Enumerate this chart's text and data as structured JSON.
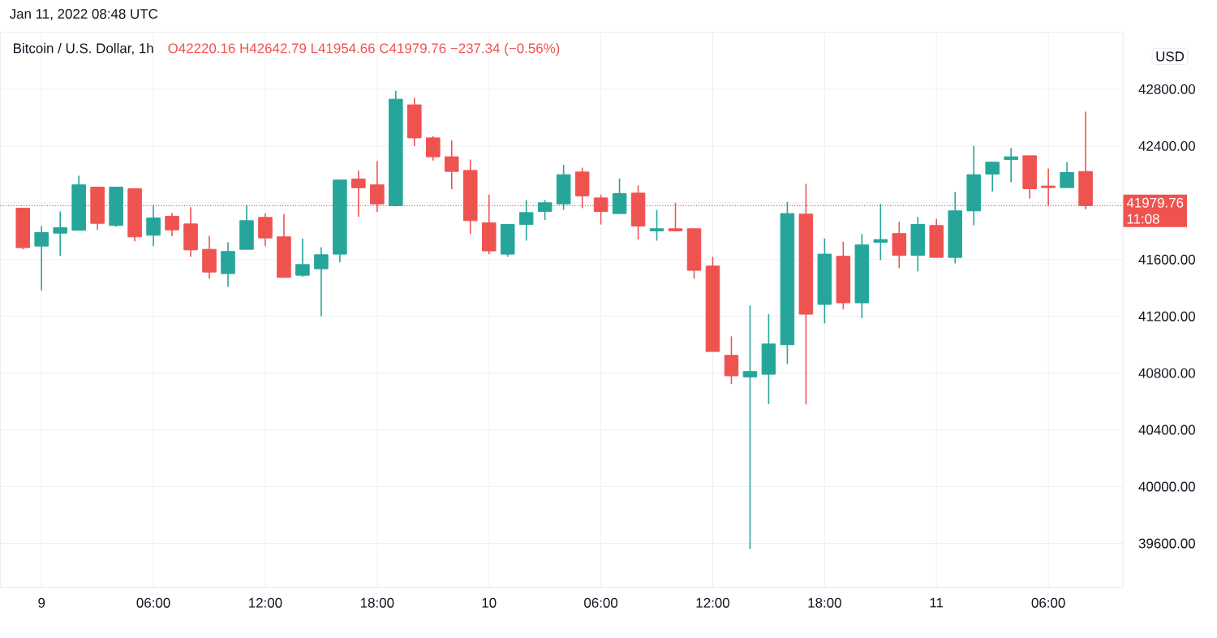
{
  "chart_data": {
    "type": "candlestick",
    "title": "Bitcoin / U.S. Dollar, 1h",
    "subtitle": "O42220.16 H42642.79 L41954.66 C41979.76 −237.34 (−0.56%)",
    "ylabel": "USD",
    "annotations": [
      "Jan 11, 2022 08:48 UTC",
      "11:08"
    ],
    "x": [
      "2022-01-08T23:00",
      "2022-01-09T00:00",
      "2022-01-09T01:00",
      "2022-01-09T02:00",
      "2022-01-09T03:00",
      "2022-01-09T04:00",
      "2022-01-09T05:00",
      "2022-01-09T06:00",
      "2022-01-09T07:00",
      "2022-01-09T08:00",
      "2022-01-09T09:00",
      "2022-01-09T10:00",
      "2022-01-09T11:00",
      "2022-01-09T12:00",
      "2022-01-09T13:00",
      "2022-01-09T14:00",
      "2022-01-09T15:00",
      "2022-01-09T16:00",
      "2022-01-09T17:00",
      "2022-01-09T18:00",
      "2022-01-09T19:00",
      "2022-01-09T20:00",
      "2022-01-09T21:00",
      "2022-01-09T22:00",
      "2022-01-09T23:00",
      "2022-01-10T00:00",
      "2022-01-10T01:00",
      "2022-01-10T02:00",
      "2022-01-10T03:00",
      "2022-01-10T04:00",
      "2022-01-10T05:00",
      "2022-01-10T06:00",
      "2022-01-10T07:00",
      "2022-01-10T08:00",
      "2022-01-10T09:00",
      "2022-01-10T10:00",
      "2022-01-10T11:00",
      "2022-01-10T12:00",
      "2022-01-10T13:00",
      "2022-01-10T14:00",
      "2022-01-10T15:00",
      "2022-01-10T16:00",
      "2022-01-10T17:00",
      "2022-01-10T18:00",
      "2022-01-10T19:00",
      "2022-01-10T20:00",
      "2022-01-10T21:00",
      "2022-01-10T22:00",
      "2022-01-10T23:00",
      "2022-01-11T00:00",
      "2022-01-11T01:00",
      "2022-01-11T02:00",
      "2022-01-11T03:00",
      "2022-01-11T04:00",
      "2022-01-11T05:00",
      "2022-01-11T06:00",
      "2022-01-11T07:00",
      "2022-01-11T08:00"
    ],
    "ohlc": [
      [
        41962,
        41962,
        41672,
        41684
      ],
      [
        41695,
        41836,
        41383,
        41790
      ],
      [
        41786,
        41939,
        41626,
        41825
      ],
      [
        41806,
        42190,
        41806,
        42126
      ],
      [
        42110,
        42110,
        41809,
        41855
      ],
      [
        41840,
        42110,
        41832,
        42110
      ],
      [
        42099,
        42099,
        41729,
        41760
      ],
      [
        41771,
        41985,
        41695,
        41893
      ],
      [
        41905,
        41927,
        41764,
        41809
      ],
      [
        41851,
        41969,
        41619,
        41668
      ],
      [
        41672,
        41767,
        41466,
        41512
      ],
      [
        41501,
        41722,
        41409,
        41657
      ],
      [
        41672,
        41985,
        41672,
        41874
      ],
      [
        41897,
        41924,
        41695,
        41752
      ],
      [
        41760,
        41920,
        41474,
        41474
      ],
      [
        41489,
        41748,
        41478,
        41565
      ],
      [
        41535,
        41687,
        41200,
        41634
      ],
      [
        41638,
        42160,
        41581,
        42160
      ],
      [
        42167,
        42228,
        41901,
        42106
      ],
      [
        42126,
        42293,
        41935,
        41992
      ],
      [
        41980,
        42790,
        41975,
        42730
      ],
      [
        42690,
        42740,
        42400,
        42457
      ],
      [
        42457,
        42470,
        42297,
        42324
      ],
      [
        42324,
        42440,
        42095,
        42221
      ],
      [
        42228,
        42305,
        41779,
        41874
      ],
      [
        41859,
        42057,
        41638,
        41661
      ],
      [
        41638,
        41847,
        41619,
        41847
      ],
      [
        41847,
        42019,
        41733,
        41931
      ],
      [
        41939,
        42019,
        41878,
        42000
      ],
      [
        41992,
        42267,
        41950,
        42198
      ],
      [
        42217,
        42247,
        41962,
        42049
      ],
      [
        42034,
        42057,
        41847,
        41939
      ],
      [
        41924,
        42171,
        41924,
        42065
      ],
      [
        42068,
        42122,
        41741,
        41836
      ],
      [
        41802,
        41950,
        41733,
        41817
      ],
      [
        41817,
        42000,
        41802,
        41802
      ],
      [
        41817,
        41817,
        41466,
        41524
      ],
      [
        41554,
        41619,
        40952,
        40952
      ],
      [
        40925,
        41059,
        40723,
        40781
      ],
      [
        40773,
        41276,
        39561,
        40811
      ],
      [
        40792,
        41215,
        40582,
        41005
      ],
      [
        41000,
        42007,
        40864,
        41924
      ],
      [
        41920,
        42133,
        40579,
        41215
      ],
      [
        41284,
        41748,
        41150,
        41638
      ],
      [
        41623,
        41726,
        41249,
        41295
      ],
      [
        41295,
        41779,
        41188,
        41703
      ],
      [
        41722,
        41992,
        41596,
        41741
      ],
      [
        41783,
        41867,
        41539,
        41630
      ],
      [
        41630,
        41901,
        41516,
        41847
      ],
      [
        41840,
        41886,
        41615,
        41615
      ],
      [
        41615,
        42076,
        41573,
        41943
      ],
      [
        41943,
        42400,
        41840,
        42198
      ],
      [
        42202,
        42286,
        42080,
        42286
      ],
      [
        42305,
        42385,
        42145,
        42324
      ],
      [
        42331,
        42331,
        42030,
        42099
      ],
      [
        42118,
        42240,
        41981,
        42107
      ],
      [
        42107,
        42286,
        42107,
        42213
      ],
      [
        42220.16,
        42642.79,
        41954.66,
        41979.76
      ]
    ],
    "colors": [
      "#ef5350",
      "#26a69a",
      "#26a69a",
      "#26a69a",
      "#ef5350",
      "#26a69a",
      "#ef5350",
      "#26a69a",
      "#ef5350",
      "#ef5350",
      "#ef5350",
      "#26a69a",
      "#26a69a",
      "#ef5350",
      "#ef5350",
      "#26a69a",
      "#26a69a",
      "#26a69a",
      "#ef5350",
      "#ef5350",
      "#26a69a",
      "#ef5350",
      "#ef5350",
      "#ef5350",
      "#ef5350",
      "#ef5350",
      "#26a69a",
      "#26a69a",
      "#26a69a",
      "#26a69a",
      "#ef5350",
      "#ef5350",
      "#26a69a",
      "#ef5350",
      "#26a69a",
      "#ef5350",
      "#ef5350",
      "#ef5350",
      "#ef5350",
      "#26a69a",
      "#26a69a",
      "#26a69a",
      "#ef5350",
      "#26a69a",
      "#ef5350",
      "#26a69a",
      "#26a69a",
      "#ef5350",
      "#26a69a",
      "#ef5350",
      "#26a69a",
      "#26a69a",
      "#26a69a",
      "#26a69a",
      "#ef5350",
      "#ef5350",
      "#26a69a",
      "#ef5350"
    ],
    "xlim": [
      "2022-01-08T21:48",
      "2022-01-11T10:00"
    ],
    "ylim": [
      39290,
      43200
    ],
    "xticks": [
      {
        "value": "2022-01-09T00:00",
        "label": "9"
      },
      {
        "value": "2022-01-09T06:00",
        "label": "06:00"
      },
      {
        "value": "2022-01-09T12:00",
        "label": "12:00"
      },
      {
        "value": "2022-01-09T18:00",
        "label": "18:00"
      },
      {
        "value": "2022-01-10T00:00",
        "label": "10"
      },
      {
        "value": "2022-01-10T06:00",
        "label": "06:00"
      },
      {
        "value": "2022-01-10T12:00",
        "label": "12:00"
      },
      {
        "value": "2022-01-10T18:00",
        "label": "18:00"
      },
      {
        "value": "2022-01-11T00:00",
        "label": "11"
      },
      {
        "value": "2022-01-11T06:00",
        "label": "06:00"
      }
    ],
    "yticks": [
      {
        "value": 39600,
        "label": "39600.00"
      },
      {
        "value": 40000,
        "label": "40000.00"
      },
      {
        "value": 40400,
        "label": "40400.00"
      },
      {
        "value": 40800,
        "label": "40800.00"
      },
      {
        "value": 41200,
        "label": "41200.00"
      },
      {
        "value": 41600,
        "label": "41600.00"
      },
      {
        "value": 42000,
        "label": null
      },
      {
        "value": 42400,
        "label": "42400.00"
      },
      {
        "value": 42800,
        "label": "42800.00"
      }
    ],
    "grid": true,
    "ref_lines": [
      {
        "axis": "y",
        "value": 41979.76,
        "label": "41979.76",
        "color": "#ef5350",
        "line_style": "dotted"
      }
    ]
  }
}
